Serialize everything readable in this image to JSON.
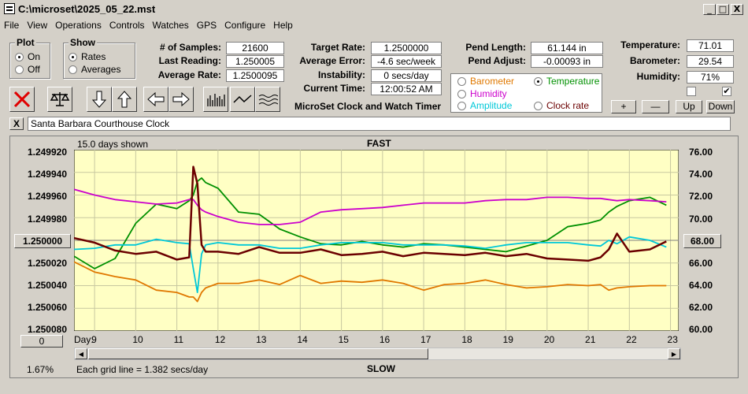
{
  "window": {
    "title": "C:\\microset\\2025_05_22.mst",
    "minimize": "_",
    "maximize": "□",
    "close": "X"
  },
  "menu": [
    "File",
    "View",
    "Operations",
    "Controls",
    "Watches",
    "GPS",
    "Configure",
    "Help"
  ],
  "plot_group": {
    "title": "Plot",
    "on": "On",
    "off": "Off",
    "selected": "On"
  },
  "show_group": {
    "title": "Show",
    "rates": "Rates",
    "averages": "Averages",
    "selected": "Rates"
  },
  "stats": {
    "samples_label": "# of Samples:",
    "samples": "21600",
    "last_label": "Last Reading:",
    "last": "1.250005",
    "avg_label": "Average Rate:",
    "avg": "1.2500095",
    "target_label": "Target Rate:",
    "target": "1.2500000",
    "avgerr_label": "Average Error:",
    "avgerr": "-4.6 sec/week",
    "instab_label": "Instability:",
    "instab": "0 secs/day",
    "time_label": "Current Time:",
    "time": "12:00:52 AM",
    "pendlen_label": "Pend Length:",
    "pendlen": "61.144 in",
    "pendadj_label": "Pend Adjust:",
    "pendadj": "-0.00093 in",
    "temp_label": "Temperature:",
    "temp": "71.01",
    "baro_label": "Barometer:",
    "baro": "29.54",
    "hum_label": "Humidity:",
    "hum": "71%"
  },
  "app_subtitle": "MicroSet Clock and Watch Timer",
  "sensor_select": {
    "barometer": "Barometer",
    "temperature": "Temperature",
    "humidity": "Humidity",
    "amplitude": "Amplitude",
    "clockrate": "Clock rate",
    "selected": "Temperature",
    "colors": {
      "barometer": "#e07800",
      "temperature": "#009000",
      "humidity": "#cc00cc",
      "amplitude": "#00c8d8",
      "clockrate": "#000000"
    }
  },
  "adjust_buttons": {
    "plus": "+",
    "minus": "—",
    "up": "Up",
    "down": "Down"
  },
  "close_small": "X",
  "clock_name": "Santa Barbara Courthouse Clock",
  "graph": {
    "days_shown": "15.0 days shown",
    "fast": "FAST",
    "slow": "SLOW",
    "grid_note": "Each grid line = 1.382 secs/day",
    "percent": "1.67%",
    "left_axis": [
      "1.249920",
      "1.249940",
      "1.249960",
      "1.249980",
      "1.250000",
      "1.250020",
      "1.250040",
      "1.250060",
      "1.250080"
    ],
    "left_highlight": "1.250000",
    "right_axis": [
      "76.00",
      "74.00",
      "72.00",
      "70.00",
      "68.00",
      "66.00",
      "64.00",
      "62.00",
      "60.00"
    ],
    "right_highlight": "68.00",
    "zero_btn": "0",
    "day_label": "Day:",
    "days": [
      "9",
      "10",
      "11",
      "12",
      "13",
      "14",
      "15",
      "16",
      "17",
      "18",
      "19",
      "20",
      "21",
      "22",
      "23"
    ]
  },
  "chart_data": {
    "type": "line",
    "xlabel": "Day:",
    "x": [
      8.5,
      9,
      9.5,
      10,
      10.5,
      11,
      11.3,
      11.4,
      11.5,
      11.6,
      11.7,
      12,
      12.5,
      13,
      13.5,
      14,
      14.5,
      15,
      15.5,
      16,
      16.5,
      17,
      17.5,
      18,
      18.5,
      19,
      19.5,
      20,
      20.5,
      21,
      21.3,
      21.5,
      21.7,
      22,
      22.5,
      22.9
    ],
    "series": [
      {
        "name": "Clock rate",
        "color": "#6b0000",
        "values": [
          1.249998,
          1.250002,
          1.250009,
          1.250012,
          1.25001,
          1.250017,
          1.250015,
          1.249935,
          1.24995,
          1.250004,
          1.25001,
          1.25001,
          1.250012,
          1.250006,
          1.250011,
          1.250011,
          1.250008,
          1.250013,
          1.250012,
          1.25001,
          1.250014,
          1.250011,
          1.250012,
          1.250013,
          1.250011,
          1.250014,
          1.250012,
          1.250016,
          1.250017,
          1.250018,
          1.250015,
          1.250008,
          1.249994,
          1.25001,
          1.250008,
          1.250001
        ]
      },
      {
        "name": "Temperature",
        "color": "#009000",
        "values": [
          66.6,
          65.5,
          66.4,
          69.5,
          71.2,
          70.8,
          71.5,
          72.0,
          73.2,
          73.5,
          73.1,
          72.6,
          70.5,
          70.3,
          69.0,
          68.3,
          67.7,
          67.6,
          67.9,
          67.6,
          67.4,
          67.7,
          67.6,
          67.4,
          67.2,
          67.0,
          67.5,
          68.0,
          69.2,
          69.5,
          69.8,
          70.5,
          71.0,
          71.5,
          71.8,
          71.1
        ]
      },
      {
        "name": "Humidity",
        "color": "#cc00cc",
        "values": [
          72.5,
          72.0,
          71.6,
          71.4,
          71.2,
          71.3,
          71.6,
          71.6,
          71.1,
          70.7,
          70.5,
          70.1,
          69.6,
          69.4,
          69.4,
          69.6,
          70.5,
          70.7,
          70.8,
          70.9,
          71.1,
          71.3,
          71.3,
          71.3,
          71.5,
          71.6,
          71.6,
          71.8,
          71.8,
          71.7,
          71.7,
          71.6,
          71.5,
          71.6,
          71.5,
          71.4
        ]
      },
      {
        "name": "Amplitude",
        "color": "#00c8d8",
        "values": [
          67.2,
          67.3,
          67.6,
          67.6,
          68.1,
          67.8,
          67.7,
          65.5,
          63.4,
          66.8,
          67.6,
          67.8,
          67.6,
          67.6,
          67.3,
          67.3,
          67.6,
          67.8,
          67.8,
          67.8,
          67.6,
          67.6,
          67.6,
          67.5,
          67.3,
          67.6,
          67.8,
          67.8,
          67.8,
          67.6,
          67.5,
          68.0,
          67.7,
          68.3,
          68.0,
          67.4
        ]
      },
      {
        "name": "Barometer",
        "color": "#e07800",
        "values": [
          66.1,
          65.2,
          64.8,
          64.5,
          63.6,
          63.4,
          63.0,
          63.0,
          62.6,
          63.4,
          63.8,
          64.2,
          64.2,
          64.5,
          64.1,
          64.9,
          64.2,
          64.4,
          64.3,
          64.5,
          64.2,
          63.6,
          64.1,
          64.2,
          64.5,
          64.1,
          63.8,
          63.9,
          64.1,
          64.0,
          64.1,
          63.6,
          63.8,
          63.9,
          64.0,
          64.0
        ]
      }
    ],
    "ylim_left": [
      1.24992,
      1.25008
    ],
    "ylim_right": [
      60,
      76
    ],
    "xlim": [
      8.5,
      23.2
    ],
    "grid": true
  }
}
